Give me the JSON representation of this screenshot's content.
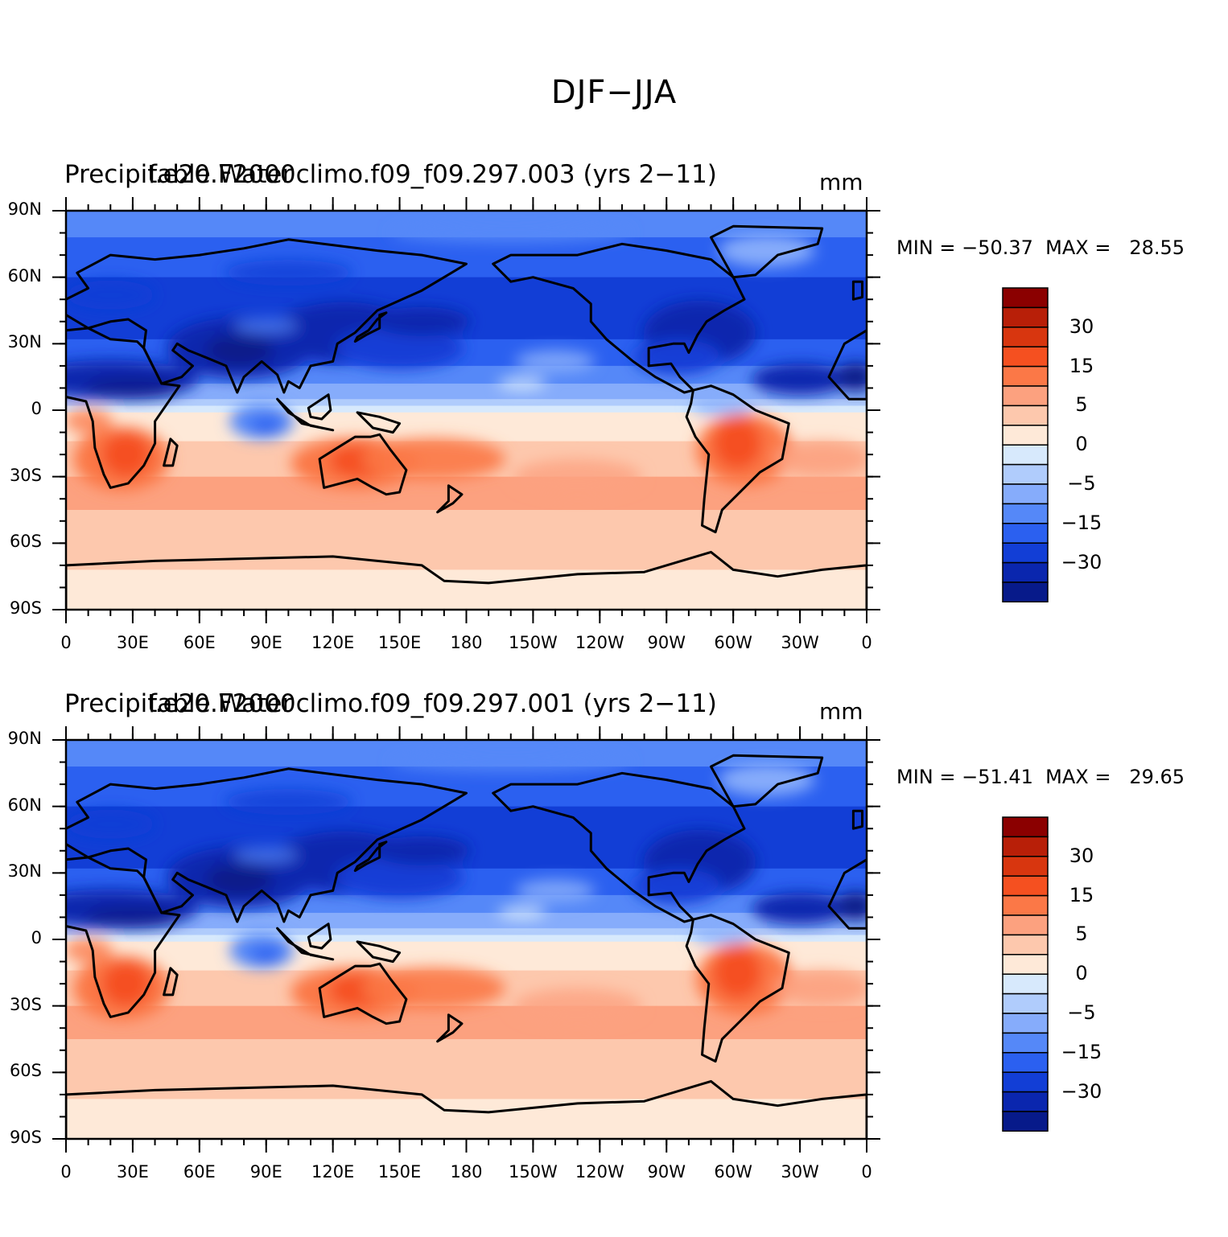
{
  "figure": {
    "title": "DJF−JJA"
  },
  "axes": {
    "lat_ticks": [
      "90N",
      "60N",
      "30N",
      "0",
      "30S",
      "60S",
      "90S"
    ],
    "lon_ticks": [
      "0",
      "30E",
      "60E",
      "90E",
      "120E",
      "150E",
      "180",
      "150W",
      "120W",
      "90W",
      "60W",
      "30W",
      "0"
    ]
  },
  "colorbar": {
    "levels": [
      "30",
      "15",
      "5",
      "0",
      "−5",
      "−15",
      "−30"
    ],
    "colors": [
      "#8b0000",
      "#b81f08",
      "#d8360f",
      "#f55020",
      "#fb7847",
      "#fca17f",
      "#fdc8ad",
      "#fee9d8",
      "#d7e9fc",
      "#b0ccfc",
      "#86acfb",
      "#5588f8",
      "#2b60f0",
      "#123ed6",
      "#0a26ae",
      "#071a8a"
    ]
  },
  "panels": [
    {
      "left_string": "Precipitable Water",
      "center_string": "f.e20.F2000climo.f09_f09.297.003 (yrs 2−11)",
      "units": "mm",
      "min_max": "MIN = −50.37  MAX =   28.55"
    },
    {
      "left_string": "Precipitable Water",
      "center_string": "f.e20.F2000climo.f09_f09.297.001 (yrs 2−11)",
      "units": "mm",
      "min_max": "MIN = −51.41  MAX =   29.65"
    }
  ],
  "chart_data": {
    "type": "heatmap",
    "title": "DJF−JJA",
    "units": "mm",
    "colorbar_tick_labels": [
      30,
      15,
      5,
      0,
      -5,
      -15,
      -30
    ],
    "maps": [
      {
        "case": "f.e20.F2000climo.f09_f09.297.003 (yrs 2−11)",
        "variable": "Precipitable Water",
        "min": -50.37,
        "max": 28.55
      },
      {
        "case": "f.e20.F2000climo.f09_f09.297.001 (yrs 2−11)",
        "variable": "Precipitable Water",
        "min": -51.41,
        "max": 29.65
      }
    ],
    "xlim": [
      "0",
      "0"
    ],
    "ylim": [
      "90S",
      "90N"
    ]
  }
}
